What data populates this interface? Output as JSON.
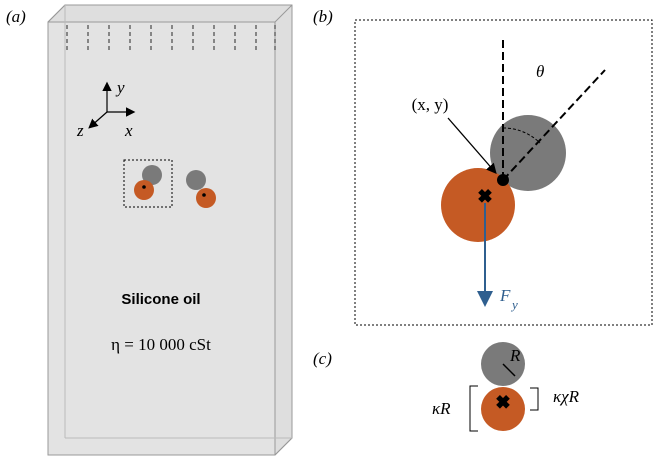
{
  "panels": {
    "a": {
      "label": "(a)",
      "axes": {
        "y": "y",
        "z": "z",
        "x": "x"
      },
      "fluid": "Silicone oil",
      "viscosity": "η = 10 000 cSt"
    },
    "b": {
      "label": "(b)",
      "position": "(x, y)",
      "angle": "θ",
      "force": {
        "symbol": "F",
        "subscript": "y"
      }
    },
    "c": {
      "label": "(c)",
      "radius": "R",
      "large_size": "κR",
      "small_size": "κχR"
    }
  }
}
